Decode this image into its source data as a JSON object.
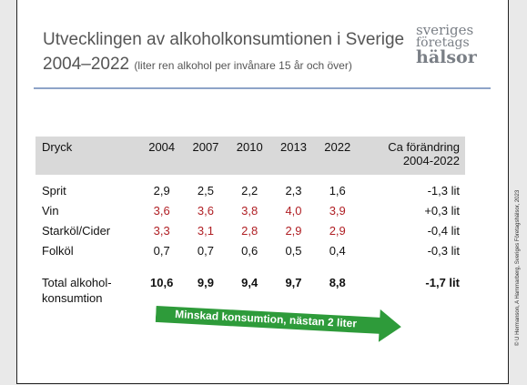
{
  "header": {
    "title": "Utvecklingen av alkoholkonsumtionen i Sverige",
    "title_line2": "2004–2022",
    "subtitle": "(liter ren alkohol per invånare 15 år och över)"
  },
  "logo": [
    "sveriges",
    "företags",
    "hälsor"
  ],
  "table": {
    "columns": [
      "Dryck",
      "2004",
      "2007",
      "2010",
      "2013",
      "2022",
      "Ca förändring\n2004-2022"
    ],
    "rows": [
      [
        "Sprit",
        "2,9",
        "2,5",
        "2,2",
        "2,3",
        "1,6",
        "-1,3 lit"
      ],
      [
        "Vin",
        "3,6",
        "3,6",
        "3,8",
        "4,0",
        "3,9",
        "+0,3 lit"
      ],
      [
        "Starköl/Cider",
        "3,3",
        "3,1",
        "2,8",
        "2,9",
        "2,9",
        "-0,4 lit"
      ],
      [
        "Folköl",
        "0,7",
        "0,7",
        "0,6",
        "0,5",
        "0,4",
        "-0,3 lit"
      ],
      [
        "Total alkohol-\nkonsumtion",
        "10,6",
        "9,9",
        "9,4",
        "9,7",
        "8,8",
        "-1,7 lit"
      ]
    ]
  },
  "arrow": "Minskad konsumtion, nästan 2 liter",
  "credit": "© U Hermanson, A Hammarberg, Sveriges Företagshälsor, 2023"
}
